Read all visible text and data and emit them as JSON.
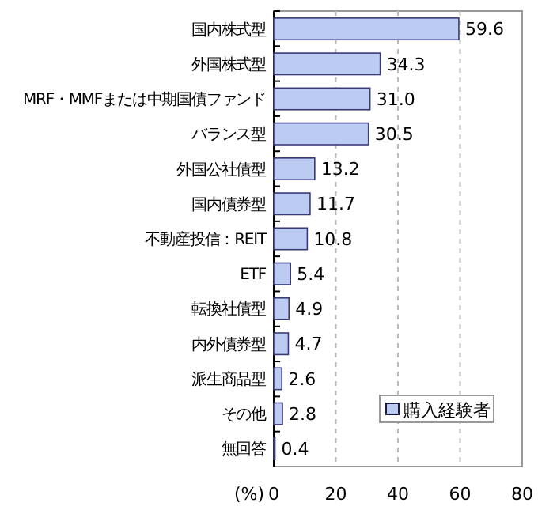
{
  "chart_data": {
    "type": "bar",
    "orientation": "horizontal",
    "xlabel": "(%)",
    "categories": [
      "国内株式型",
      "外国株式型",
      "MRF・MMFまたは中期国債ファンド",
      "バランス型",
      "外国公社債型",
      "国内債券型",
      "不動産投信：REIT",
      "ETF",
      "転換社債型",
      "内外債券型",
      "派生商品型",
      "その他",
      "無回答"
    ],
    "series": [
      {
        "name": "購入経験者",
        "color": "#bccbf2",
        "values": [
          59.6,
          34.3,
          31.0,
          30.5,
          13.2,
          11.7,
          10.8,
          5.4,
          4.9,
          4.7,
          2.6,
          2.8,
          0.4
        ]
      }
    ],
    "value_labels": [
      "59.6",
      "34.3",
      "31.0",
      "30.5",
      "13.2",
      "11.7",
      "10.8",
      "5.4",
      "4.9",
      "4.7",
      "2.6",
      "2.8",
      "0.4"
    ],
    "xlim": [
      0,
      80
    ],
    "xticks": [
      0,
      20,
      40,
      60,
      80
    ],
    "grid": "x",
    "legend": "bottom right"
  }
}
